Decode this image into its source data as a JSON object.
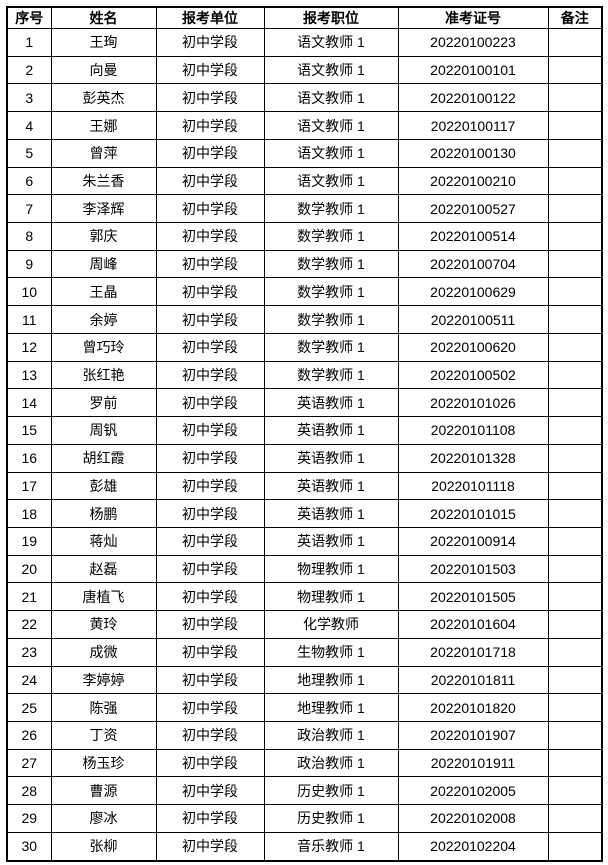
{
  "page": {
    "background_color": "#ffffff",
    "text_color": "#000000",
    "border_color": "#000000"
  },
  "table": {
    "columns": [
      "序号",
      "姓名",
      "报考单位",
      "报考职位",
      "准考证号",
      "备注"
    ],
    "rows": [
      {
        "no": "1",
        "name": "王珣",
        "unit": "初中学段",
        "position": "语文教师 1",
        "ticket": "20220100223",
        "remark": ""
      },
      {
        "no": "2",
        "name": "向曼",
        "unit": "初中学段",
        "position": "语文教师 1",
        "ticket": "20220100101",
        "remark": ""
      },
      {
        "no": "3",
        "name": "彭英杰",
        "unit": "初中学段",
        "position": "语文教师 1",
        "ticket": "20220100122",
        "remark": ""
      },
      {
        "no": "4",
        "name": "王娜",
        "unit": "初中学段",
        "position": "语文教师 1",
        "ticket": "20220100117",
        "remark": ""
      },
      {
        "no": "5",
        "name": "曾萍",
        "unit": "初中学段",
        "position": "语文教师 1",
        "ticket": "20220100130",
        "remark": ""
      },
      {
        "no": "6",
        "name": "朱兰香",
        "unit": "初中学段",
        "position": "语文教师 1",
        "ticket": "20220100210",
        "remark": ""
      },
      {
        "no": "7",
        "name": "李泽辉",
        "unit": "初中学段",
        "position": "数学教师 1",
        "ticket": "20220100527",
        "remark": ""
      },
      {
        "no": "8",
        "name": "郭庆",
        "unit": "初中学段",
        "position": "数学教师 1",
        "ticket": "20220100514",
        "remark": ""
      },
      {
        "no": "9",
        "name": "周峰",
        "unit": "初中学段",
        "position": "数学教师 1",
        "ticket": "20220100704",
        "remark": ""
      },
      {
        "no": "10",
        "name": "王晶",
        "unit": "初中学段",
        "position": "数学教师 1",
        "ticket": "20220100629",
        "remark": ""
      },
      {
        "no": "11",
        "name": "余婷",
        "unit": "初中学段",
        "position": "数学教师 1",
        "ticket": "20220100511",
        "remark": ""
      },
      {
        "no": "12",
        "name": "曾巧玲",
        "unit": "初中学段",
        "position": "数学教师 1",
        "ticket": "20220100620",
        "remark": ""
      },
      {
        "no": "13",
        "name": "张红艳",
        "unit": "初中学段",
        "position": "数学教师 1",
        "ticket": "20220100502",
        "remark": ""
      },
      {
        "no": "14",
        "name": "罗前",
        "unit": "初中学段",
        "position": "英语教师 1",
        "ticket": "20220101026",
        "remark": ""
      },
      {
        "no": "15",
        "name": "周钒",
        "unit": "初中学段",
        "position": "英语教师 1",
        "ticket": "20220101108",
        "remark": ""
      },
      {
        "no": "16",
        "name": "胡红霞",
        "unit": "初中学段",
        "position": "英语教师 1",
        "ticket": "20220101328",
        "remark": ""
      },
      {
        "no": "17",
        "name": "彭雄",
        "unit": "初中学段",
        "position": "英语教师 1",
        "ticket": "20220101118",
        "remark": ""
      },
      {
        "no": "18",
        "name": "杨鹏",
        "unit": "初中学段",
        "position": "英语教师 1",
        "ticket": "20220101015",
        "remark": ""
      },
      {
        "no": "19",
        "name": "蒋灿",
        "unit": "初中学段",
        "position": "英语教师 1",
        "ticket": "20220100914",
        "remark": ""
      },
      {
        "no": "20",
        "name": "赵磊",
        "unit": "初中学段",
        "position": "物理教师 1",
        "ticket": "20220101503",
        "remark": ""
      },
      {
        "no": "21",
        "name": "唐植飞",
        "unit": "初中学段",
        "position": "物理教师 1",
        "ticket": "20220101505",
        "remark": ""
      },
      {
        "no": "22",
        "name": "黄玲",
        "unit": "初中学段",
        "position": "化学教师",
        "ticket": "20220101604",
        "remark": ""
      },
      {
        "no": "23",
        "name": "成微",
        "unit": "初中学段",
        "position": "生物教师 1",
        "ticket": "20220101718",
        "remark": ""
      },
      {
        "no": "24",
        "name": "李婷婷",
        "unit": "初中学段",
        "position": "地理教师 1",
        "ticket": "20220101811",
        "remark": ""
      },
      {
        "no": "25",
        "name": "陈强",
        "unit": "初中学段",
        "position": "地理教师 1",
        "ticket": "20220101820",
        "remark": ""
      },
      {
        "no": "26",
        "name": "丁资",
        "unit": "初中学段",
        "position": "政治教师 1",
        "ticket": "20220101907",
        "remark": ""
      },
      {
        "no": "27",
        "name": "杨玉珍",
        "unit": "初中学段",
        "position": "政治教师 1",
        "ticket": "20220101911",
        "remark": ""
      },
      {
        "no": "28",
        "name": "曹源",
        "unit": "初中学段",
        "position": "历史教师 1",
        "ticket": "20220102005",
        "remark": ""
      },
      {
        "no": "29",
        "name": "廖冰",
        "unit": "初中学段",
        "position": "历史教师 1",
        "ticket": "20220102008",
        "remark": ""
      },
      {
        "no": "30",
        "name": "张柳",
        "unit": "初中学段",
        "position": "音乐教师 1",
        "ticket": "20220102204",
        "remark": ""
      }
    ]
  }
}
